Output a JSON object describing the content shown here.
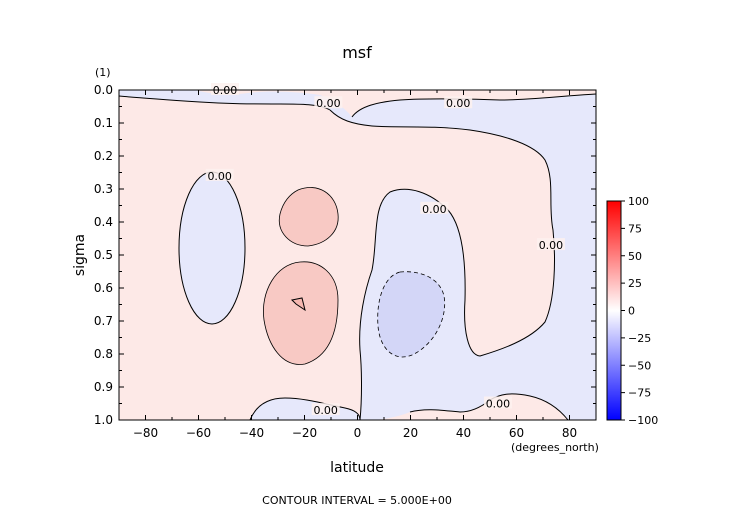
{
  "chart_data": {
    "type": "contour",
    "title": "msf",
    "xlabel": "latitude",
    "ylabel": "sigma",
    "x_units": "(degrees_north)",
    "y_units": "(1)",
    "xlim": [
      -90,
      90
    ],
    "ylim": [
      1.0,
      0.0
    ],
    "x_ticks": [
      -80,
      -60,
      -40,
      -20,
      0,
      20,
      40,
      60,
      80
    ],
    "x_tick_labels": [
      "−80",
      "−60",
      "−40",
      "−20",
      "0",
      "20",
      "40",
      "60",
      "80"
    ],
    "y_ticks": [
      0.0,
      0.1,
      0.2,
      0.3,
      0.4,
      0.5,
      0.6,
      0.7,
      0.8,
      0.9,
      1.0
    ],
    "y_tick_labels": [
      "0.0",
      "0.1",
      "0.2",
      "0.3",
      "0.4",
      "0.5",
      "0.6",
      "0.7",
      "0.8",
      "0.9",
      "1.0"
    ],
    "contour_interval_text": "CONTOUR INTERVAL = 5.000E+00",
    "colorbar": {
      "ticks": [
        100,
        75,
        50,
        25,
        0,
        -25,
        -50,
        -75,
        -100
      ],
      "tick_labels": [
        "100",
        "75",
        "50",
        "25",
        "0",
        "−25",
        "−50",
        "−75",
        "−100"
      ],
      "range": [
        -100,
        100
      ]
    },
    "contour_labels": [
      {
        "text": "0.00",
        "lat": -50,
        "sigma": 0.0
      },
      {
        "text": "0.00",
        "lat": -11,
        "sigma": 0.04
      },
      {
        "text": "0.00",
        "lat": 38,
        "sigma": 0.04
      },
      {
        "text": "0.00",
        "lat": -52,
        "sigma": 0.26
      },
      {
        "text": "0.00",
        "lat": 29,
        "sigma": 0.36
      },
      {
        "text": "0.00",
        "lat": 73,
        "sigma": 0.47
      },
      {
        "text": "0.00",
        "lat": -12,
        "sigma": 0.97
      },
      {
        "text": "0.00",
        "lat": 53,
        "sigma": 0.95
      }
    ],
    "background_color": "#fde9e7",
    "negative_color": "#e6e8fb",
    "colors": {
      "positive": "#ff0000",
      "negative": "#0000ff"
    }
  }
}
